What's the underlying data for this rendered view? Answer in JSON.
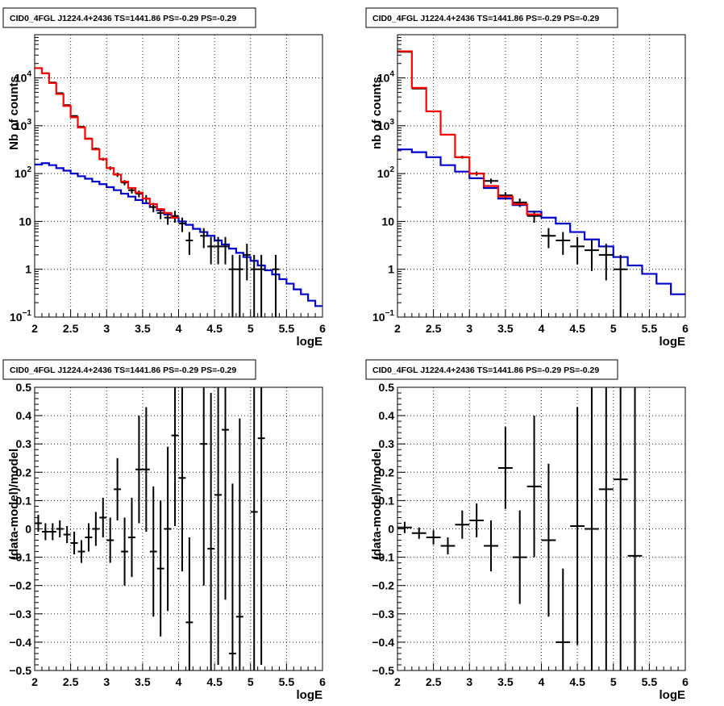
{
  "chart_data": [
    {
      "type": "line",
      "title": "CID0_4FGL J1224.4+2436 TS=1441.86 PS=-0.29 PS=-0.29",
      "xlabel": "logE",
      "ylabel": "Nb of counts",
      "log_y": true,
      "xlim": [
        2,
        6
      ],
      "ylim": [
        0.1,
        80000
      ],
      "grid": true,
      "colors": {
        "data": "#000000",
        "total_model": "#ff0000",
        "background_model": "#0000cc"
      },
      "data_points": [
        {
          "x": 2.05,
          "y": 16000
        },
        {
          "x": 2.15,
          "y": 12500
        },
        {
          "x": 2.25,
          "y": 8000
        },
        {
          "x": 2.35,
          "y": 4800
        },
        {
          "x": 2.45,
          "y": 2700
        },
        {
          "x": 2.55,
          "y": 1600
        },
        {
          "x": 2.65,
          "y": 950
        },
        {
          "x": 2.75,
          "y": 540
        },
        {
          "x": 2.85,
          "y": 330
        },
        {
          "x": 2.95,
          "y": 200
        },
        {
          "x": 3.05,
          "y": 130
        },
        {
          "x": 3.15,
          "y": 95
        },
        {
          "x": 3.25,
          "y": 65
        },
        {
          "x": 3.35,
          "y": 45
        },
        {
          "x": 3.45,
          "y": 38
        },
        {
          "x": 3.55,
          "y": 30
        },
        {
          "x": 3.65,
          "y": 20
        },
        {
          "x": 3.75,
          "y": 15
        },
        {
          "x": 3.85,
          "y": 12
        },
        {
          "x": 3.95,
          "y": 13
        },
        {
          "x": 4.05,
          "y": 9
        },
        {
          "x": 4.15,
          "y": 4
        },
        {
          "x": 4.35,
          "y": 5
        },
        {
          "x": 4.45,
          "y": 3
        },
        {
          "x": 4.55,
          "y": 3
        },
        {
          "x": 4.65,
          "y": 3
        },
        {
          "x": 4.75,
          "y": 1
        },
        {
          "x": 4.85,
          "y": 1
        },
        {
          "x": 4.95,
          "y": 2
        },
        {
          "x": 5.05,
          "y": 1
        },
        {
          "x": 5.15,
          "y": 1
        },
        {
          "x": 5.35,
          "y": 1
        }
      ],
      "bin_half_width": 0.05,
      "total_model": {
        "edges": [
          2.0,
          2.1,
          2.2,
          2.3,
          2.4,
          2.5,
          2.6,
          2.7,
          2.8,
          2.9,
          3.0,
          3.1,
          3.2,
          3.3,
          3.4,
          3.5,
          3.6,
          3.7,
          3.8,
          3.9,
          4.0
        ],
        "values": [
          16000,
          12500,
          7800,
          4600,
          2600,
          1500,
          920,
          530,
          320,
          200,
          130,
          95,
          68,
          50,
          40,
          30,
          23,
          18,
          15,
          12
        ]
      },
      "background_model": {
        "edges": [
          2.0,
          2.1,
          2.2,
          2.3,
          2.4,
          2.5,
          2.6,
          2.7,
          2.8,
          2.9,
          3.0,
          3.1,
          3.2,
          3.3,
          3.4,
          3.5,
          3.6,
          3.7,
          3.8,
          3.9,
          4.0,
          4.1,
          4.2,
          4.3,
          4.4,
          4.5,
          4.6,
          4.7,
          4.8,
          4.9,
          5.0,
          5.1,
          5.2,
          5.3,
          5.4,
          5.5,
          5.6,
          5.7,
          5.8,
          5.9,
          6.0
        ],
        "values": [
          155,
          165,
          150,
          130,
          115,
          100,
          88,
          78,
          68,
          60,
          52,
          45,
          38,
          33,
          28,
          24,
          20,
          17,
          14,
          12,
          10,
          8.5,
          7,
          6,
          5,
          4,
          3.3,
          2.7,
          2.2,
          1.8,
          1.5,
          1.2,
          0.95,
          0.78,
          0.62,
          0.5,
          0.38,
          0.3,
          0.22,
          0.17
        ]
      },
      "x_ticks": [
        2,
        2.5,
        3,
        3.5,
        4,
        4.5,
        5,
        5.5,
        6
      ],
      "y_ticks": [
        {
          "value": 0.1,
          "label": "10",
          "exp": "−1"
        },
        {
          "value": 1,
          "label": "1",
          "exp": ""
        },
        {
          "value": 10,
          "label": "10",
          "exp": ""
        },
        {
          "value": 100,
          "label": "10",
          "exp": "2"
        },
        {
          "value": 1000,
          "label": "10",
          "exp": "3"
        },
        {
          "value": 10000,
          "label": "10",
          "exp": "4"
        }
      ]
    },
    {
      "type": "line",
      "title": "CID0_4FGL J1224.4+2436 TS=1441.86 PS=-0.29 PS=-0.29",
      "xlabel": "logE",
      "ylabel": "nb of counts",
      "log_y": true,
      "xlim": [
        2,
        6
      ],
      "ylim": [
        0.1,
        80000
      ],
      "grid": true,
      "colors": {
        "data": "#000000",
        "total_model": "#ff0000",
        "background_model": "#0000cc"
      },
      "data_points": [
        {
          "x": 2.1,
          "y": 35000
        },
        {
          "x": 2.3,
          "y": 6000
        },
        {
          "x": 2.5,
          "y": 2000
        },
        {
          "x": 2.7,
          "y": 650
        },
        {
          "x": 2.9,
          "y": 220
        },
        {
          "x": 3.1,
          "y": 100
        },
        {
          "x": 3.3,
          "y": 70
        },
        {
          "x": 3.5,
          "y": 35
        },
        {
          "x": 3.7,
          "y": 25
        },
        {
          "x": 3.9,
          "y": 13
        },
        {
          "x": 4.1,
          "y": 5
        },
        {
          "x": 4.3,
          "y": 4
        },
        {
          "x": 4.5,
          "y": 3
        },
        {
          "x": 4.7,
          "y": 2.5
        },
        {
          "x": 4.9,
          "y": 2
        },
        {
          "x": 5.1,
          "y": 1
        }
      ],
      "bin_half_width": 0.1,
      "total_model": {
        "edges": [
          2.0,
          2.2,
          2.4,
          2.6,
          2.8,
          3.0,
          3.2,
          3.4,
          3.6,
          3.8,
          4.0
        ],
        "values": [
          36000,
          6200,
          2000,
          650,
          220,
          100,
          55,
          33,
          23,
          14
        ]
      },
      "background_model": {
        "edges": [
          2.0,
          2.2,
          2.4,
          2.6,
          2.8,
          3.0,
          3.2,
          3.4,
          3.6,
          3.8,
          4.0,
          4.2,
          4.4,
          4.6,
          4.8,
          5.0,
          5.2,
          5.4,
          5.6,
          5.8,
          6.0
        ],
        "values": [
          320,
          280,
          220,
          150,
          110,
          80,
          50,
          30,
          22,
          16,
          12,
          9,
          6,
          4.2,
          3,
          1.8,
          1.2,
          0.8,
          0.5,
          0.3
        ]
      },
      "x_ticks": [
        2,
        2.5,
        3,
        3.5,
        4,
        4.5,
        5,
        5.5,
        6
      ],
      "y_ticks": [
        {
          "value": 0.1,
          "label": "10",
          "exp": "−1"
        },
        {
          "value": 1,
          "label": "1",
          "exp": ""
        },
        {
          "value": 10,
          "label": "10",
          "exp": ""
        },
        {
          "value": 100,
          "label": "10",
          "exp": "2"
        },
        {
          "value": 1000,
          "label": "10",
          "exp": "3"
        },
        {
          "value": 10000,
          "label": "10",
          "exp": "4"
        }
      ]
    },
    {
      "type": "scatter",
      "title": "CID0_4FGL J1224.4+2436 TS=1441.86 PS=-0.29 PS=-0.29",
      "xlabel": "logE",
      "ylabel": "(data-model)/model",
      "log_y": false,
      "xlim": [
        2,
        6
      ],
      "ylim": [
        -0.5,
        0.5
      ],
      "grid": true,
      "bin_half_width": 0.05,
      "points": [
        {
          "x": 2.05,
          "y": 0.02,
          "err": 0.03
        },
        {
          "x": 2.15,
          "y": -0.01,
          "err": 0.03
        },
        {
          "x": 2.25,
          "y": -0.01,
          "err": 0.03
        },
        {
          "x": 2.35,
          "y": 0.0,
          "err": 0.03
        },
        {
          "x": 2.45,
          "y": -0.02,
          "err": 0.03
        },
        {
          "x": 2.55,
          "y": -0.05,
          "err": 0.04
        },
        {
          "x": 2.65,
          "y": -0.08,
          "err": 0.04
        },
        {
          "x": 2.75,
          "y": -0.03,
          "err": 0.05
        },
        {
          "x": 2.85,
          "y": 0.0,
          "err": 0.06
        },
        {
          "x": 2.95,
          "y": 0.04,
          "err": 0.07
        },
        {
          "x": 3.05,
          "y": -0.04,
          "err": 0.08
        },
        {
          "x": 3.15,
          "y": 0.14,
          "err": 0.11
        },
        {
          "x": 3.25,
          "y": -0.08,
          "err": 0.12
        },
        {
          "x": 3.35,
          "y": -0.03,
          "err": 0.14
        },
        {
          "x": 3.45,
          "y": 0.21,
          "err": 0.19
        },
        {
          "x": 3.55,
          "y": 0.21,
          "err": 0.22
        },
        {
          "x": 3.65,
          "y": -0.08,
          "err": 0.23
        },
        {
          "x": 3.75,
          "y": -0.14,
          "err": 0.24
        },
        {
          "x": 3.85,
          "y": 0.0,
          "err": 0.29
        },
        {
          "x": 3.95,
          "y": 0.33,
          "err": 0.32
        },
        {
          "x": 4.05,
          "y": 0.18,
          "err": 0.33
        },
        {
          "x": 4.15,
          "y": -0.33,
          "err": 0.3
        },
        {
          "x": 4.35,
          "y": 0.3,
          "err": 0.5
        },
        {
          "x": 4.45,
          "y": -0.07,
          "err": 0.55
        },
        {
          "x": 4.55,
          "y": 0.12,
          "err": 0.6
        },
        {
          "x": 4.65,
          "y": 0.35,
          "err": 0.6
        },
        {
          "x": 4.75,
          "y": -0.44,
          "err": 0.6
        },
        {
          "x": 4.85,
          "y": -0.31,
          "err": 0.7
        },
        {
          "x": 5.05,
          "y": 0.06,
          "err": 0.7
        },
        {
          "x": 5.15,
          "y": 0.32,
          "err": 0.8
        }
      ],
      "x_ticks": [
        2,
        2.5,
        3,
        3.5,
        4,
        4.5,
        5,
        5.5,
        6
      ],
      "y_ticks": [
        -0.5,
        -0.4,
        -0.3,
        -0.2,
        -0.1,
        0,
        0.1,
        0.2,
        0.3,
        0.4,
        0.5
      ]
    },
    {
      "type": "scatter",
      "title": "CID0_4FGL J1224.4+2436 TS=1441.86 PS=-0.29 PS=-0.29",
      "xlabel": "logE",
      "ylabel": "(data-model)/model",
      "log_y": false,
      "xlim": [
        2,
        6
      ],
      "ylim": [
        -0.5,
        0.5
      ],
      "grid": true,
      "bin_half_width": 0.1,
      "points": [
        {
          "x": 2.1,
          "y": 0.005,
          "err": 0.02
        },
        {
          "x": 2.3,
          "y": -0.015,
          "err": 0.02
        },
        {
          "x": 2.5,
          "y": -0.03,
          "err": 0.025
        },
        {
          "x": 2.7,
          "y": -0.06,
          "err": 0.03
        },
        {
          "x": 2.9,
          "y": 0.015,
          "err": 0.05
        },
        {
          "x": 3.1,
          "y": 0.03,
          "err": 0.06
        },
        {
          "x": 3.3,
          "y": -0.06,
          "err": 0.09
        },
        {
          "x": 3.5,
          "y": 0.215,
          "err": 0.145
        },
        {
          "x": 3.7,
          "y": -0.1,
          "err": 0.165
        },
        {
          "x": 3.9,
          "y": 0.15,
          "err": 0.25
        },
        {
          "x": 4.1,
          "y": -0.04,
          "err": 0.27
        },
        {
          "x": 4.3,
          "y": -0.4,
          "err": 0.26
        },
        {
          "x": 4.5,
          "y": 0.01,
          "err": 0.42
        },
        {
          "x": 4.7,
          "y": 0.0,
          "err": 0.6
        },
        {
          "x": 4.9,
          "y": 0.14,
          "err": 0.65
        },
        {
          "x": 5.1,
          "y": 0.175,
          "err": 0.7
        },
        {
          "x": 5.3,
          "y": -0.095,
          "err": 0.8
        }
      ],
      "x_ticks": [
        2,
        2.5,
        3,
        3.5,
        4,
        4.5,
        5,
        5.5,
        6
      ],
      "y_ticks": [
        -0.5,
        -0.4,
        -0.3,
        -0.2,
        -0.1,
        0,
        0.1,
        0.2,
        0.3,
        0.4,
        0.5
      ]
    }
  ]
}
